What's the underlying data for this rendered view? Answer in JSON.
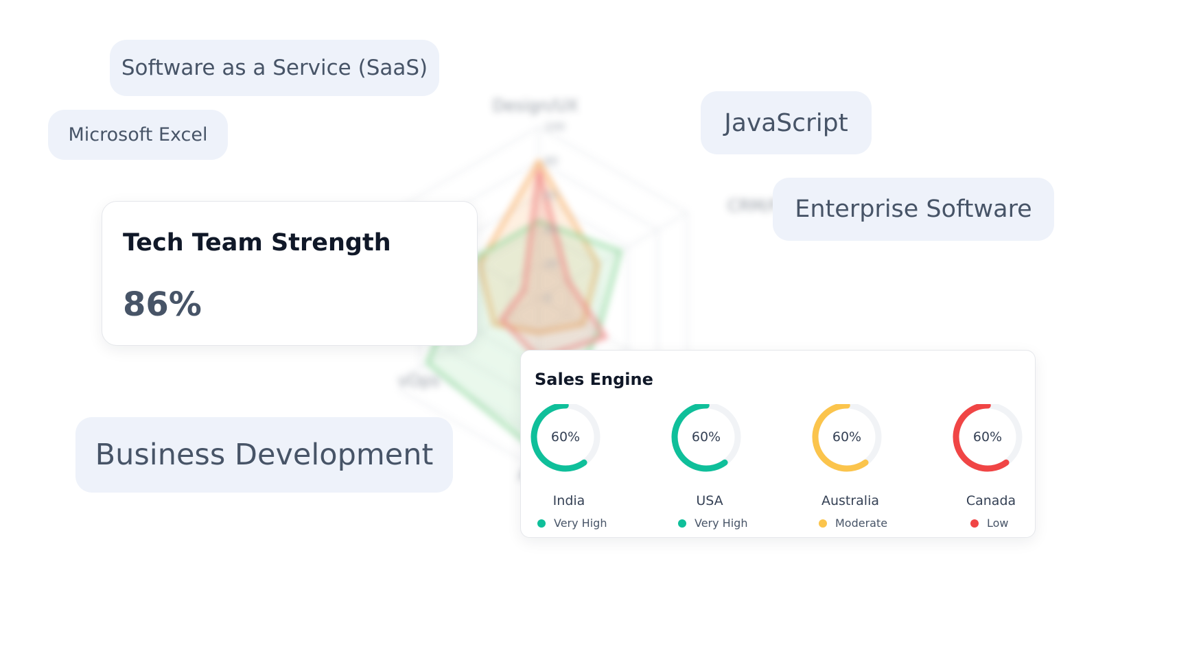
{
  "chips": {
    "saas": "Software as a Service (SaaS)",
    "excel": "Microsoft Excel",
    "javascript": "JavaScript",
    "enterprise": "Enterprise Software",
    "bizdev": "Business Development"
  },
  "radar": {
    "axes": [
      "Design/UX",
      "CRM/Platf",
      "",
      "A",
      "Cloud/DevOps",
      ""
    ],
    "ticks": [
      "100",
      "80",
      "60",
      "40",
      "20",
      "0"
    ],
    "series": [
      {
        "color": "#f79f4a",
        "values": [
          80,
          40,
          30,
          20,
          30,
          40
        ]
      },
      {
        "color": "#7cd18c",
        "values": [
          45,
          55,
          40,
          90,
          75,
          45
        ]
      },
      {
        "color": "#ef6b6b",
        "values": [
          75,
          20,
          45,
          35,
          25,
          10
        ]
      }
    ]
  },
  "tech_card": {
    "title": "Tech Team Strength",
    "value": "86%"
  },
  "sales_card": {
    "title": "Sales Engine",
    "regions": [
      {
        "name": "India",
        "percent": 60,
        "percent_label": "60%",
        "status": "Very High",
        "color": "#0fbf9a"
      },
      {
        "name": "USA",
        "percent": 60,
        "percent_label": "60%",
        "status": "Very High",
        "color": "#0fbf9a"
      },
      {
        "name": "Australia",
        "percent": 60,
        "percent_label": "60%",
        "status": "Moderate",
        "color": "#fbc44c"
      },
      {
        "name": "Canada",
        "percent": 60,
        "percent_label": "60%",
        "status": "Low",
        "color": "#f04545"
      }
    ]
  }
}
